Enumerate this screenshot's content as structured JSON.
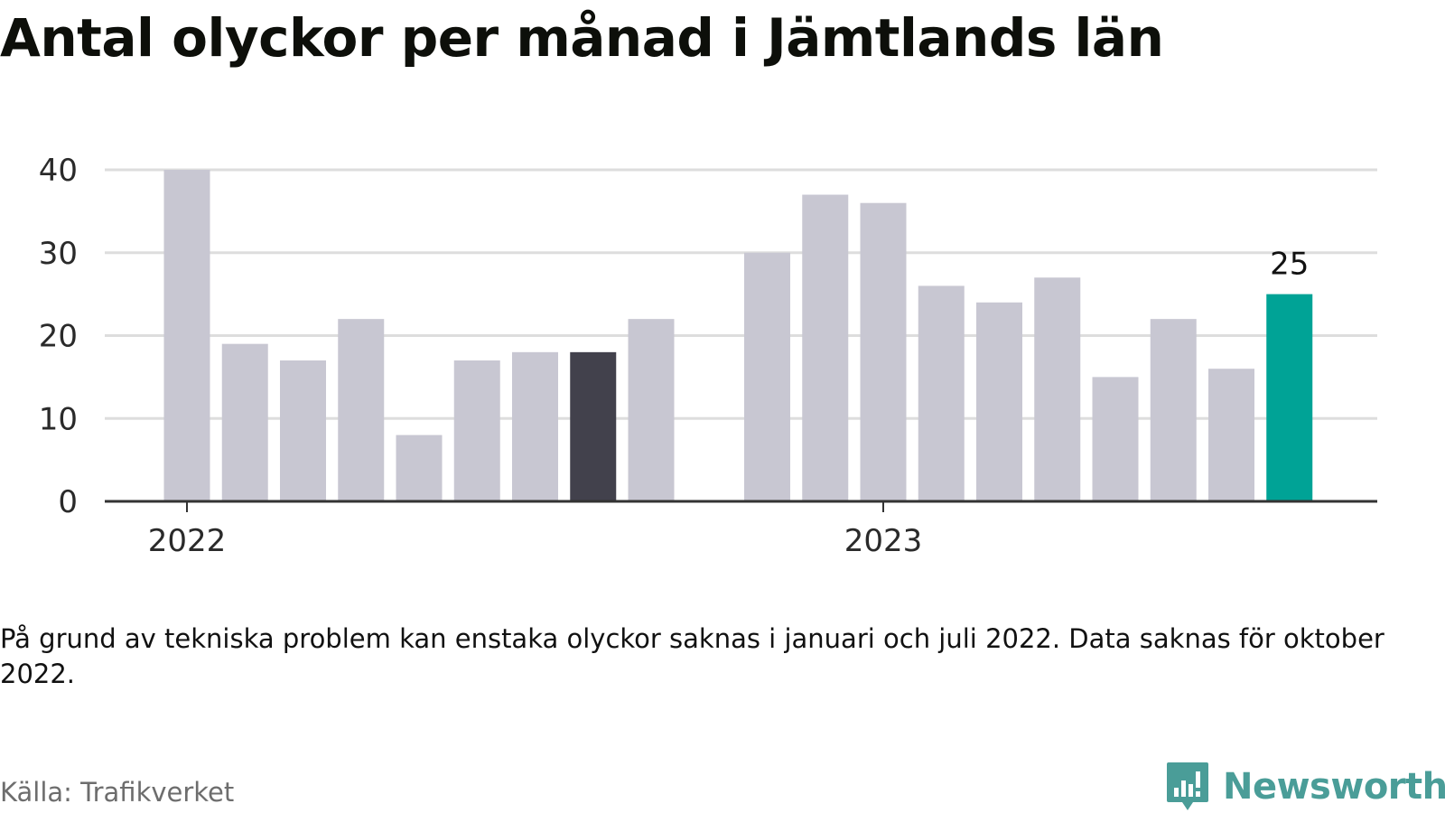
{
  "title": "Antal olyckor per månad i Jämtlands län",
  "note": "På grund av tekniska problem kan enstaka olyckor saknas i januari och juli 2022. Data saknas för oktober 2022.",
  "source": "Källa: Trafikverket",
  "brand": {
    "name": "Newsworthy",
    "color": "#4a9d98",
    "icon": "bar-chart-speech-bubble-icon"
  },
  "colors": {
    "default_bar": "#c8c7d2",
    "highlight_dark": "#42414c",
    "highlight_latest": "#00a396",
    "grid": "#dddddd",
    "axis": "#333333"
  },
  "chart_data": {
    "type": "bar",
    "title": "Antal olyckor per månad i Jämtlands län",
    "xlabel": "",
    "ylabel": "",
    "ylim": [
      0,
      40
    ],
    "yticks": [
      0,
      10,
      20,
      30,
      40
    ],
    "grid": true,
    "legend": "none",
    "x_tick_labels": [
      {
        "label": "2022",
        "at": "2022-01"
      },
      {
        "label": "2023",
        "at": "2023-01"
      }
    ],
    "categories": [
      "2022-01",
      "2022-02",
      "2022-03",
      "2022-04",
      "2022-05",
      "2022-06",
      "2022-07",
      "2022-08",
      "2022-09",
      "2022-10",
      "2022-11",
      "2022-12",
      "2023-01",
      "2023-02",
      "2023-03",
      "2023-04",
      "2023-05",
      "2023-06",
      "2023-07",
      "2023-08",
      "2023-09",
      "2023-10",
      "2023-11",
      "2023-12"
    ],
    "values": [
      40,
      19,
      17,
      22,
      8,
      17,
      18,
      18,
      22,
      null,
      30,
      37,
      36,
      26,
      24,
      27,
      15,
      22,
      16,
      25,
      null,
      null,
      null,
      null
    ],
    "bar_colors": [
      "default",
      "default",
      "default",
      "default",
      "default",
      "default",
      "default",
      "dark",
      "default",
      null,
      "default",
      "default",
      "default",
      "default",
      "default",
      "default",
      "default",
      "default",
      "default",
      "latest",
      null,
      null,
      null,
      null
    ],
    "annotations": [
      {
        "category": "2023-08",
        "text": "25"
      }
    ]
  }
}
